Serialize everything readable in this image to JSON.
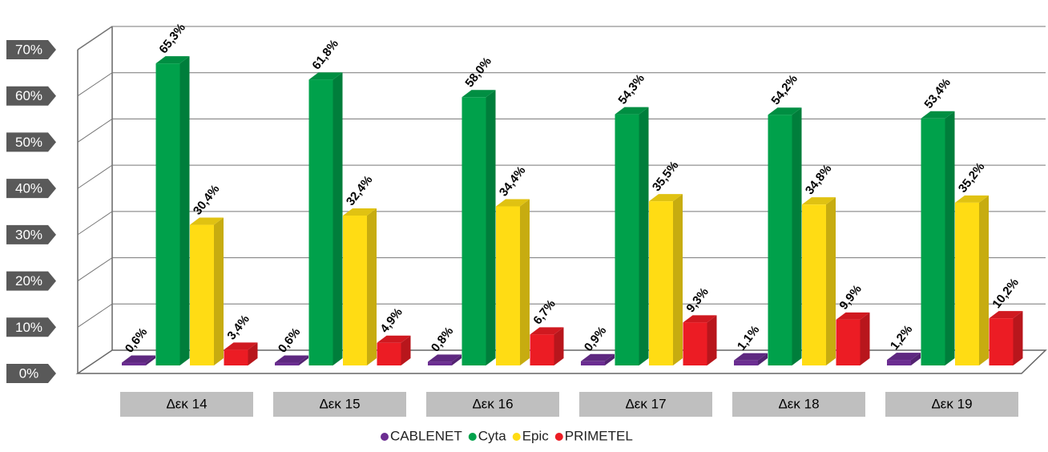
{
  "chart_data": {
    "type": "bar3d",
    "categories": [
      "Δεκ 14",
      "Δεκ 15",
      "Δεκ 16",
      "Δεκ 17",
      "Δεκ 18",
      "Δεκ 19"
    ],
    "series": [
      {
        "name": "CABLENET",
        "color": "#6b2d91",
        "values": [
          0.6,
          0.6,
          0.8,
          0.9,
          1.1,
          1.2
        ],
        "value_labels": [
          "0,6%",
          "0,6%",
          "0,8%",
          "0,9%",
          "1,1%",
          "1,2%"
        ]
      },
      {
        "name": "Cyta",
        "color": "#00a14b",
        "values": [
          65.3,
          61.8,
          58.0,
          54.3,
          54.2,
          53.4
        ],
        "value_labels": [
          "65,3%",
          "61,8%",
          "58,0%",
          "54,3%",
          "54,2%",
          "53,4%"
        ]
      },
      {
        "name": "Epic",
        "color": "#ffdc14",
        "values": [
          30.4,
          32.4,
          34.4,
          35.5,
          34.8,
          35.2
        ],
        "value_labels": [
          "30,4%",
          "32,4%",
          "34,4%",
          "35,5%",
          "34,8%",
          "35,2%"
        ]
      },
      {
        "name": "PRIMETEL",
        "color": "#ec1c24",
        "values": [
          3.4,
          4.9,
          6.7,
          9.3,
          9.9,
          10.2
        ],
        "value_labels": [
          "3,4%",
          "4,9%",
          "6,7%",
          "9,3%",
          "9,9%",
          "10,2%"
        ]
      }
    ],
    "ylim": [
      0,
      70
    ],
    "yticks": [
      {
        "value": 0,
        "label": "0%"
      },
      {
        "value": 10,
        "label": "10%"
      },
      {
        "value": 20,
        "label": "20%"
      },
      {
        "value": 30,
        "label": "30%"
      },
      {
        "value": 40,
        "label": "40%"
      },
      {
        "value": 50,
        "label": "50%"
      },
      {
        "value": 60,
        "label": "60%"
      },
      {
        "value": 70,
        "label": "70%"
      }
    ],
    "grid": true
  }
}
